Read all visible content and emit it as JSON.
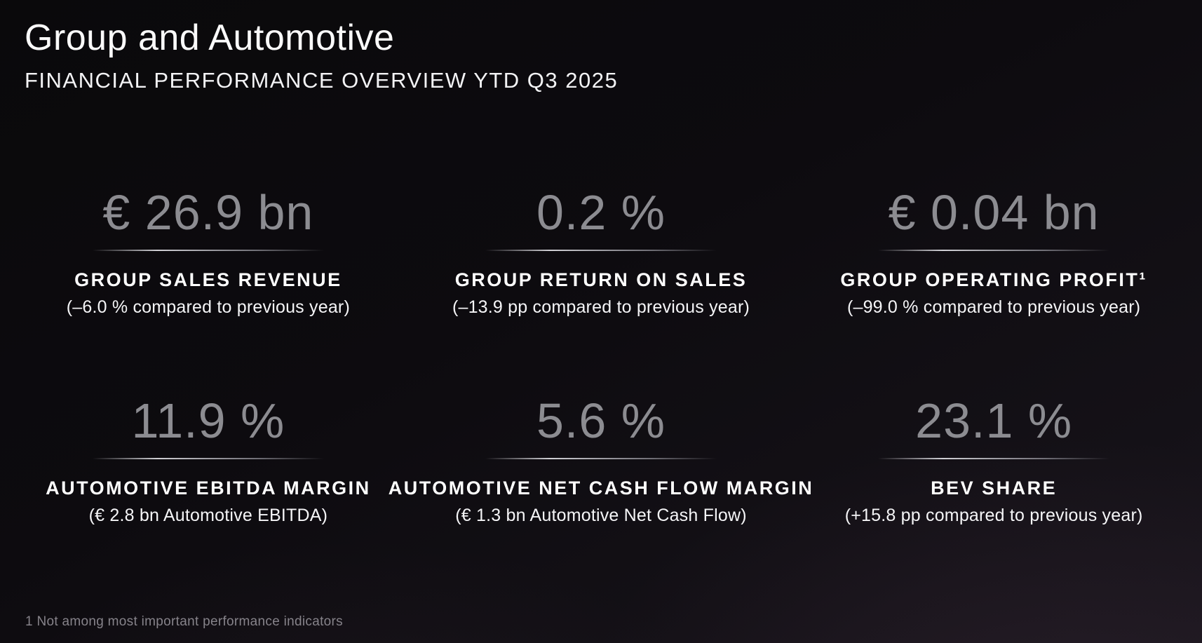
{
  "slide": {
    "title": "Group and Automotive",
    "subtitle": "FINANCIAL PERFORMANCE OVERVIEW YTD Q3 2025",
    "footnote": "1 Not among most important performance indicators"
  },
  "colors": {
    "background_top": "#0a090b",
    "background_bottom": "#18141b",
    "value_gray": "#8c8c91",
    "label_white": "#ffffff",
    "footnote_gray": "#86838a",
    "divider_highlight": "#f2f2f7"
  },
  "kpis": [
    {
      "value": "€ 26.9 bn",
      "label": "GROUP SALES REVENUE",
      "sub": "(–6.0 % compared to previous year)"
    },
    {
      "value": "0.2 %",
      "label": "GROUP RETURN ON SALES",
      "sub": "(–13.9 pp compared to previous year)"
    },
    {
      "value": "€ 0.04 bn",
      "label": "GROUP OPERATING PROFIT¹",
      "sub": "(–99.0 % compared to previous year)"
    },
    {
      "value": "11.9 %",
      "label": "AUTOMOTIVE EBITDA MARGIN",
      "sub": "(€ 2.8 bn Automotive EBITDA)"
    },
    {
      "value": "5.6 %",
      "label": "AUTOMOTIVE NET CASH FLOW MARGIN",
      "sub": "(€ 1.3 bn Automotive Net Cash Flow)"
    },
    {
      "value": "23.1 %",
      "label": "BEV SHARE",
      "sub": "(+15.8 pp compared to previous year)"
    }
  ]
}
